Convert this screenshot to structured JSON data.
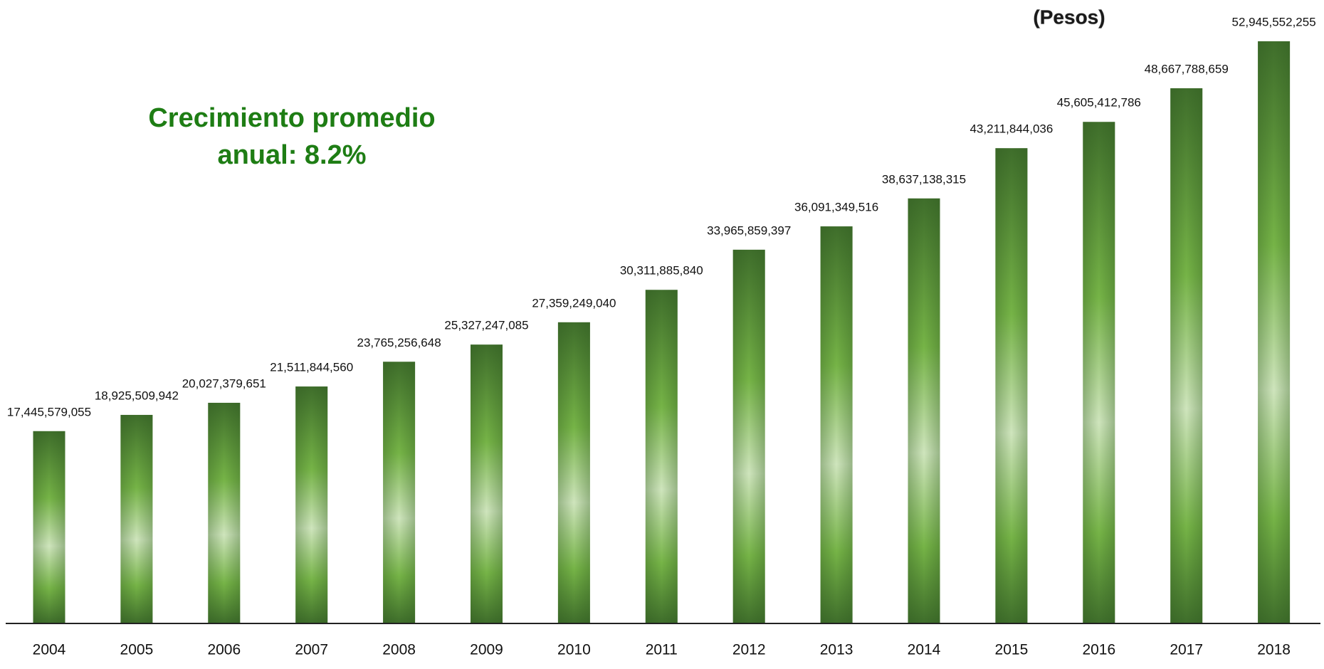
{
  "chart_data": {
    "type": "bar",
    "subtitle": "(Pesos)",
    "annotation": "Crecimiento promedio anual: 8.2%",
    "categories": [
      "2004",
      "2005",
      "2006",
      "2007",
      "2008",
      "2009",
      "2010",
      "2011",
      "2012",
      "2013",
      "2014",
      "2015",
      "2016",
      "2017",
      "2018"
    ],
    "values": [
      17445579055,
      18925509942,
      20027379651,
      21511844560,
      23765256648,
      25327247085,
      27359249040,
      30311885840,
      33965859397,
      36091349516,
      38637138315,
      43211844036,
      45605412786,
      48667788659,
      52945552255
    ],
    "value_labels": [
      "17,445,579,055",
      "18,925,509,942",
      "20,027,379,651",
      "21,511,844,560",
      "23,765,256,648",
      "25,327,247,085",
      "27,359,249,040",
      "30,311,885,840",
      "33,965,859,397",
      "36,091,349,516",
      "38,637,138,315",
      "43,211,844,036",
      "45,605,412,786",
      "48,667,788,659",
      "52,945,552,255"
    ],
    "color": "#76b447"
  }
}
